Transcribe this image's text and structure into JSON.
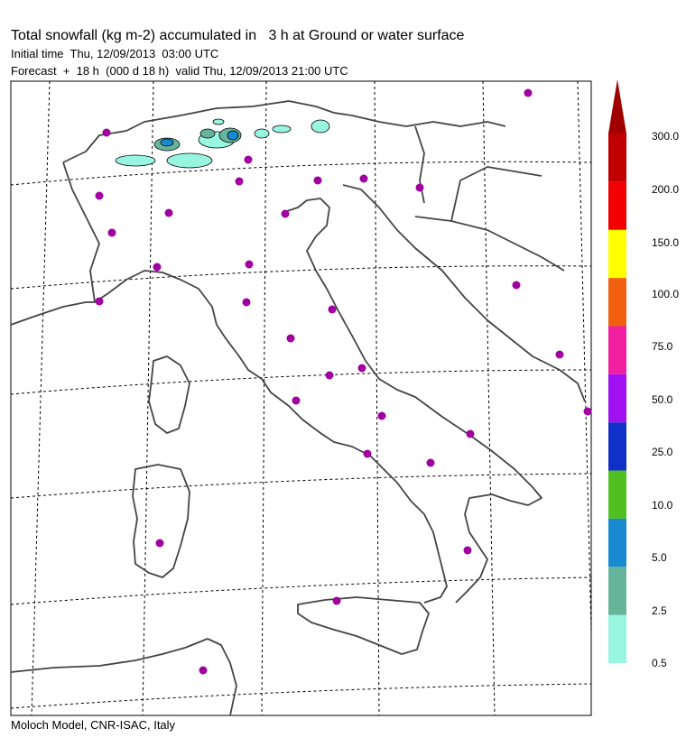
{
  "header": {
    "title": "Total snowfall (kg m-2) accumulated in   3 h at Ground or water surface",
    "initial_time": "Initial time  Thu, 12/09/2013  03:00 UTC",
    "forecast": "Forecast  +  18 h  (000 d 18 h)  valid Thu, 12/09/2013 21:00 UTC"
  },
  "footer": {
    "credit": "Moloch Model, CNR-ISAC, Italy"
  },
  "legend": {
    "labels": [
      "0.5",
      "2.5",
      "5.0",
      "10.0",
      "25.0",
      "50.0",
      "75.0",
      "100.0",
      "150.0",
      "200.0",
      "300.0"
    ],
    "colors": [
      "#98f5e0",
      "#66b59a",
      "#1a8ad0",
      "#50c020",
      "#1030c8",
      "#a010f0",
      "#f020a0",
      "#f06010",
      "#ffff00",
      "#f00000",
      "#c00000",
      "#a00000"
    ]
  },
  "map": {
    "region": "Italy",
    "coastline_color": "#444444",
    "station_color": "#a000a0"
  }
}
